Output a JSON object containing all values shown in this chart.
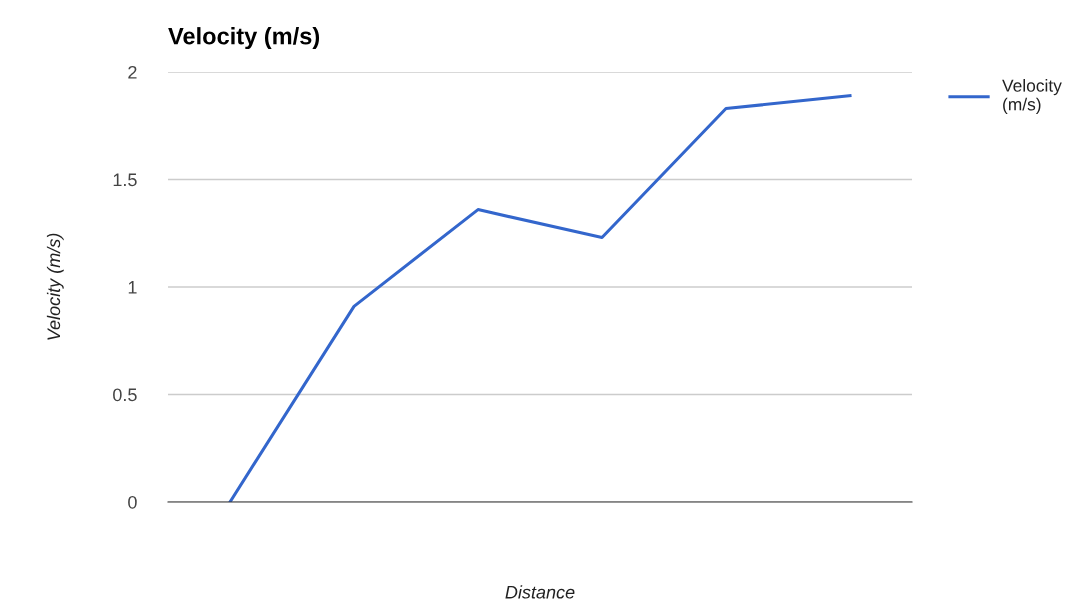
{
  "chart_data": {
    "type": "line",
    "title": "Velocity (m/s)",
    "xlabel": "Distance",
    "ylabel": "Velocity (m/s)",
    "categories": [
      null,
      null,
      null,
      null,
      null,
      null
    ],
    "series": [
      {
        "name": "Velocity (m/s)",
        "color": "#3366cc",
        "values": [
          0,
          0.91,
          1.36,
          1.23,
          1.83,
          1.89
        ]
      }
    ],
    "ylim": [
      0,
      2
    ],
    "yticks": [
      0,
      0.5,
      1,
      1.5,
      2
    ],
    "grid": "y",
    "legend": "top right",
    "tick_labels": "y",
    "marker": "none",
    "line_style": "solid"
  }
}
